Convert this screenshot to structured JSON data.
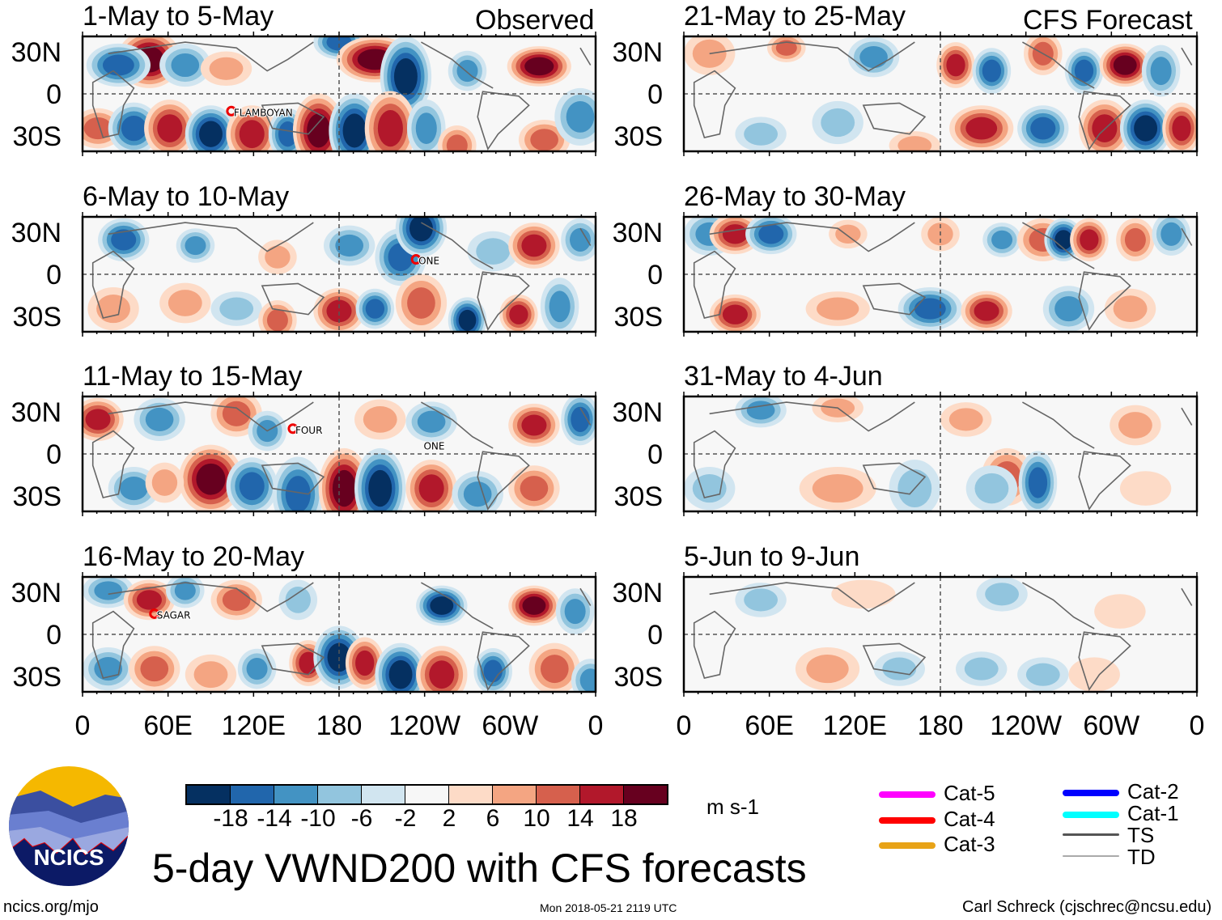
{
  "title": "5-day VWND200 with CFS forecasts",
  "left_header": "Observed",
  "right_header": "CFS Forecast",
  "units": "m s-1",
  "logo_text": "NCICS",
  "footer": {
    "url": "ncics.org/mjo",
    "timestamp": "Mon 2018-05-21 2119 UTC",
    "author": "Carl Schreck (cjschrec@ncsu.edu)"
  },
  "lat_labels": [
    "30N",
    "0",
    "30S"
  ],
  "lon_labels": [
    "0",
    "60E",
    "120E",
    "180",
    "120W",
    "60W",
    "0"
  ],
  "chart_data": {
    "type": "heatmap",
    "variable": "200-hPa meridional wind anomaly",
    "colorbar": {
      "levels": [
        -18,
        -14,
        -10,
        -6,
        -2,
        2,
        6,
        10,
        14,
        18
      ],
      "labels": [
        "-18",
        "-14",
        "-10",
        "-6",
        "-2",
        "2",
        "6",
        "10",
        "14",
        "18"
      ],
      "colors": [
        "#053061",
        "#2166ac",
        "#4393c3",
        "#92c5de",
        "#d1e5f0",
        "#f7f7f7",
        "#fddbc7",
        "#f4a582",
        "#d6604d",
        "#b2182b",
        "#67001f"
      ]
    },
    "panels": [
      {
        "title": "1-May to 5-May",
        "storms": [
          {
            "name": "FLAMBOYAN"
          }
        ]
      },
      {
        "title": "6-May to 10-May",
        "storms": [
          {
            "name": "ONE"
          }
        ]
      },
      {
        "title": "11-May to 15-May",
        "storms": [
          {
            "name": "FOUR"
          },
          {
            "name": "ONE"
          }
        ]
      },
      {
        "title": "16-May to 20-May",
        "storms": [
          {
            "name": "SAGAR"
          }
        ]
      },
      {
        "title": "21-May to 25-May",
        "storms": []
      },
      {
        "title": "26-May to 30-May",
        "storms": []
      },
      {
        "title": "31-May to 4-Jun",
        "storms": []
      },
      {
        "title": "5-Jun to 9-Jun",
        "storms": []
      }
    ]
  },
  "track_legend": [
    {
      "label": "Cat-5",
      "color": "#ff00ff"
    },
    {
      "label": "Cat-4",
      "color": "#ff0000"
    },
    {
      "label": "Cat-3",
      "color": "#e8a317"
    },
    {
      "label": "Cat-2",
      "color": "#0000ff"
    },
    {
      "label": "Cat-1",
      "color": "#00ffff"
    },
    {
      "label": "TS",
      "color": "#555555"
    },
    {
      "label": "TD",
      "color": "#aaaaaa"
    }
  ]
}
